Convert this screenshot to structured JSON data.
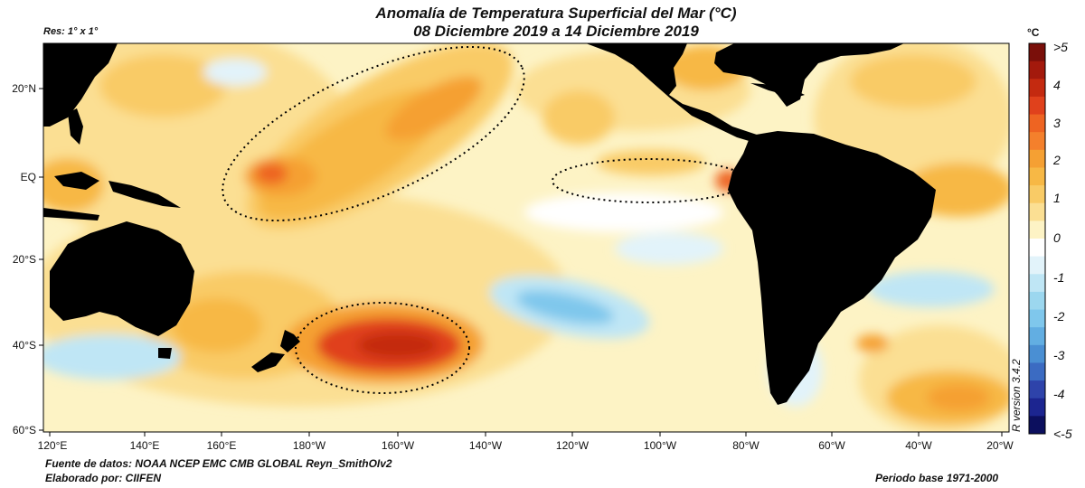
{
  "title": {
    "line1": "Anomalía de Temperatura Superficial del Mar (°C)",
    "line2": "08 Diciembre 2019 a 14 Diciembre 2019"
  },
  "resolution": "Res: 1° x 1°",
  "unit_label": "°C",
  "latitude_labels": [
    "20°N",
    "EQ",
    "20°S",
    "40°S",
    "60°S"
  ],
  "longitude_labels": [
    "120°E",
    "140°E",
    "160°E",
    "180°W",
    "160°W",
    "140°W",
    "120°W",
    "100°W",
    "80°W",
    "60°W",
    "40°W",
    "20°W"
  ],
  "colorbar": {
    "labels": [
      ">5",
      "4",
      "3",
      "2",
      "1",
      "0",
      "-1",
      "-2",
      "-3",
      "-4",
      "<-5"
    ],
    "colors_top_to_bottom": [
      "#7a0f0a",
      "#a3190c",
      "#c42a10",
      "#e0411c",
      "#ee6422",
      "#f4802c",
      "#f5a033",
      "#f7b845",
      "#f9cb66",
      "#fbdf93",
      "#fdf3c5",
      "#ffffff",
      "#e2f3fa",
      "#bfe6f5",
      "#9cd7ef",
      "#7fc7ec",
      "#62aee2",
      "#4a8fd3",
      "#3b6bc2",
      "#2e43aa",
      "#1c2590",
      "#0c0f5e"
    ]
  },
  "r_version": "R version 3.4.2",
  "data_source": "Fuente de datos: NOAA NCEP EMC CMB GLOBAL Reyn_SmithOIv2",
  "author": "Elaborado por: CIIFEN",
  "base_period": "Periodo base 1971-2000"
}
